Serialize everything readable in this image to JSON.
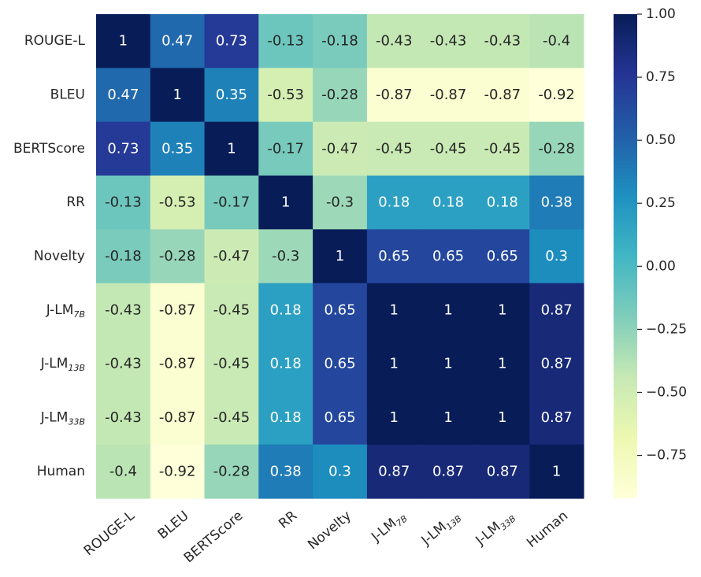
{
  "chart_data": {
    "type": "heatmap",
    "title": "",
    "xlabel": "",
    "ylabel": "",
    "labels": [
      {
        "base": "ROUGE-L",
        "sub": ""
      },
      {
        "base": "BLEU",
        "sub": ""
      },
      {
        "base": "BERTScore",
        "sub": ""
      },
      {
        "base": "RR",
        "sub": ""
      },
      {
        "base": "Novelty",
        "sub": ""
      },
      {
        "base": "J-LM",
        "sub": "7B"
      },
      {
        "base": "J-LM",
        "sub": "13B"
      },
      {
        "base": "J-LM",
        "sub": "33B"
      },
      {
        "base": "Human",
        "sub": ""
      }
    ],
    "matrix": [
      [
        1,
        0.47,
        0.73,
        -0.13,
        -0.18,
        -0.43,
        -0.43,
        -0.43,
        -0.4
      ],
      [
        0.47,
        1,
        0.35,
        -0.53,
        -0.28,
        -0.87,
        -0.87,
        -0.87,
        -0.92
      ],
      [
        0.73,
        0.35,
        1,
        -0.17,
        -0.47,
        -0.45,
        -0.45,
        -0.45,
        -0.28
      ],
      [
        -0.13,
        -0.53,
        -0.17,
        1,
        -0.3,
        0.18,
        0.18,
        0.18,
        0.38
      ],
      [
        -0.18,
        -0.28,
        -0.47,
        -0.3,
        1,
        0.65,
        0.65,
        0.65,
        0.3
      ],
      [
        -0.43,
        -0.87,
        -0.45,
        0.18,
        0.65,
        1,
        1,
        1,
        0.87
      ],
      [
        -0.43,
        -0.87,
        -0.45,
        0.18,
        0.65,
        1,
        1,
        1,
        0.87
      ],
      [
        -0.43,
        -0.87,
        -0.45,
        0.18,
        0.65,
        1,
        1,
        1,
        0.87
      ],
      [
        -0.4,
        -0.92,
        -0.28,
        0.38,
        0.3,
        0.87,
        0.87,
        0.87,
        1
      ]
    ],
    "colorbar": {
      "colormap": "YlGnBu",
      "min": -0.92,
      "max": 1.0,
      "ticks": [
        1.0,
        0.75,
        0.5,
        0.25,
        0.0,
        -0.25,
        -0.5,
        -0.75
      ],
      "tick_labels": [
        "1.00",
        "0.75",
        "0.50",
        "0.25",
        "0.00",
        "−0.25",
        "−0.50",
        "−0.75"
      ]
    },
    "legend": "none"
  }
}
